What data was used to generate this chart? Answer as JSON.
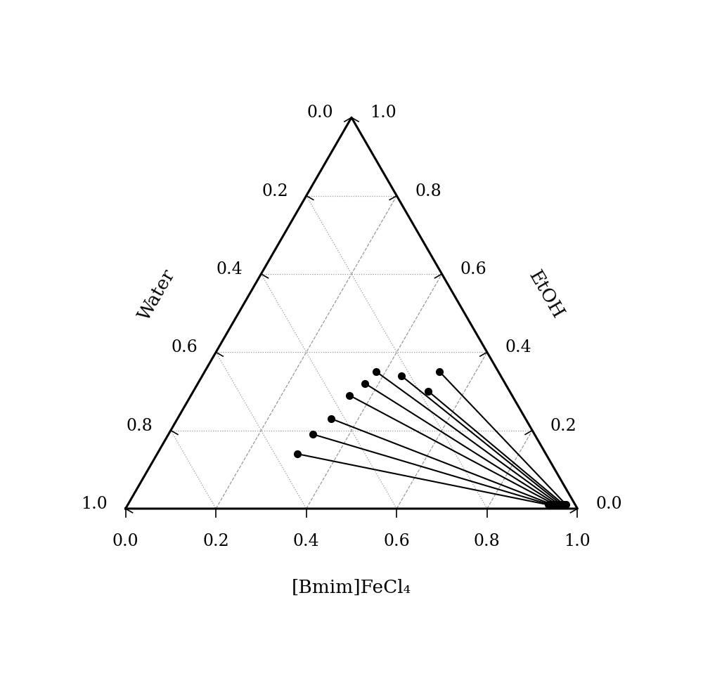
{
  "xlabel": "[Bmim]FeCl₄",
  "left_label": "Water",
  "right_label": "EtOH",
  "tick_values": [
    0.0,
    0.2,
    0.4,
    0.6,
    0.8,
    1.0
  ],
  "grid_color": "#999999",
  "tie_line_color": "#000000",
  "point_color": "#000000",
  "point_size": 7,
  "tie_lines": [
    {
      "feed": [
        0.52,
        0.13,
        0.35
      ],
      "extract": [
        0.97,
        0.02,
        0.01
      ]
    },
    {
      "feed": [
        0.52,
        0.18,
        0.3
      ],
      "extract": [
        0.965,
        0.025,
        0.01
      ]
    },
    {
      "feed": [
        0.44,
        0.22,
        0.34
      ],
      "extract": [
        0.96,
        0.03,
        0.01
      ]
    },
    {
      "feed": [
        0.38,
        0.27,
        0.35
      ],
      "extract": [
        0.955,
        0.035,
        0.01
      ]
    },
    {
      "feed": [
        0.37,
        0.31,
        0.32
      ],
      "extract": [
        0.95,
        0.04,
        0.01
      ]
    },
    {
      "feed": [
        0.35,
        0.36,
        0.29
      ],
      "extract": [
        0.945,
        0.045,
        0.01
      ]
    },
    {
      "feed": [
        0.34,
        0.43,
        0.23
      ],
      "extract": [
        0.94,
        0.05,
        0.01
      ]
    },
    {
      "feed": [
        0.32,
        0.49,
        0.19
      ],
      "extract": [
        0.935,
        0.055,
        0.01
      ]
    },
    {
      "feed": [
        0.31,
        0.55,
        0.14
      ],
      "extract": [
        0.93,
        0.06,
        0.01
      ]
    }
  ],
  "line_width": 1.5,
  "tick_fontsize": 17,
  "label_fontsize": 19,
  "fig_width": 10.0,
  "fig_height": 9.75,
  "dpi": 100
}
